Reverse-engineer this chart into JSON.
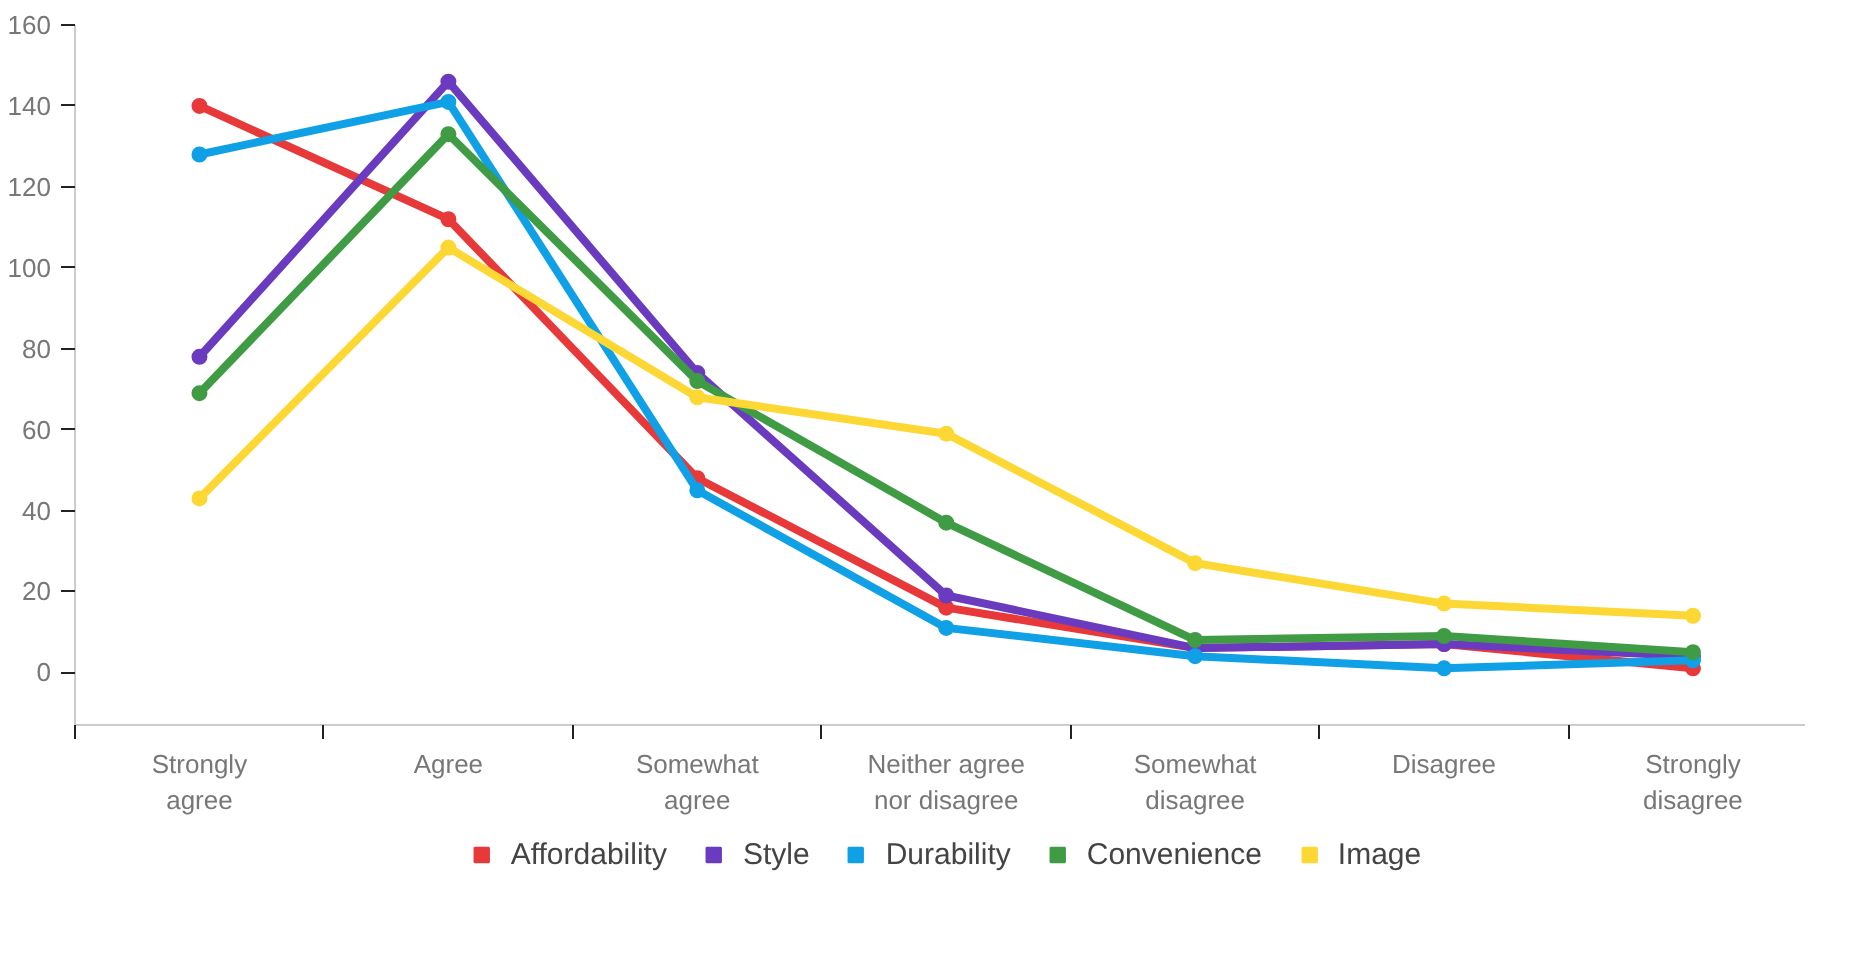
{
  "chart_data": {
    "type": "line",
    "categories": [
      "Strongly\nagree",
      "Agree",
      "Somewhat\nagree",
      "Neither agree\nnor disagree",
      "Somewhat\ndisagree",
      "Disagree",
      "Strongly\ndisagree"
    ],
    "ylim": [
      -13,
      160
    ],
    "yticks": [
      0,
      20,
      40,
      60,
      80,
      100,
      120,
      140,
      160
    ],
    "grid": false,
    "legend": "bottom",
    "marker": "circle",
    "line_style": "solid",
    "series": [
      {
        "name": "Affordability",
        "color": "#e8393a",
        "values": [
          140,
          112,
          48,
          16,
          6,
          7,
          1
        ]
      },
      {
        "name": "Style",
        "color": "#6a3bbf",
        "values": [
          78,
          146,
          74,
          19,
          6,
          7,
          4
        ]
      },
      {
        "name": "Durability",
        "color": "#0fa0e6",
        "values": [
          128,
          141,
          45,
          11,
          4,
          1,
          3
        ]
      },
      {
        "name": "Convenience",
        "color": "#3f9c45",
        "values": [
          69,
          133,
          72,
          37,
          8,
          9,
          5
        ]
      },
      {
        "name": "Image",
        "color": "#fdd835",
        "values": [
          43,
          105,
          68,
          59,
          27,
          17,
          14
        ]
      }
    ]
  }
}
